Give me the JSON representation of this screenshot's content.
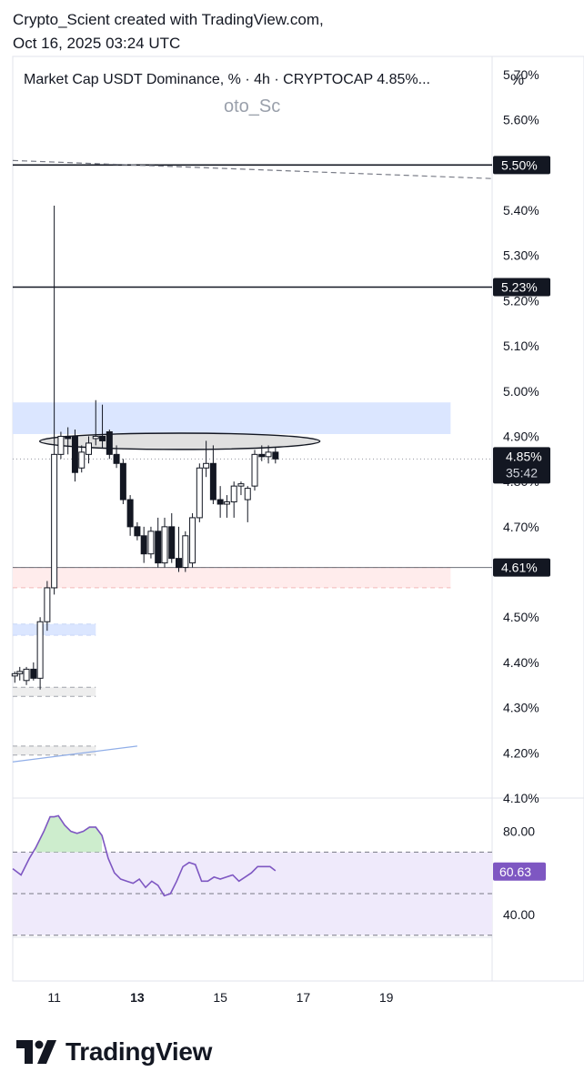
{
  "header": {
    "credit_line1": "Crypto_Scient created with TradingView.com,",
    "credit_line2": "Oct 16, 2025 03:24 UTC",
    "title": "Market Cap USDT Dominance, % · 4h · CRYPTOCAP  4.85%...",
    "watermark": "oto_Sc",
    "unit": "%"
  },
  "footer": {
    "brand": "TradingView",
    "logo_icon": "tradingview-logo-icon"
  },
  "colors": {
    "zone_blue": "#dbe6ff",
    "zone_red": "#ffecec",
    "rsi_band": "#efeafb",
    "rsi_line": "#7e57c2",
    "rsi_overbought_fill": "#c8ebc8",
    "candle_up": "#ffffff",
    "candle_down": "#131722",
    "ellipse_fill": "#d6d6d6"
  },
  "chart_data": [
    {
      "type": "candlestick",
      "title": "Market Cap USDT Dominance, % · 4h · CRYPTOCAP",
      "unit": "%",
      "ylim": [
        4.1,
        5.72
      ],
      "y_ticks": [
        "5.70%",
        "5.60%",
        "5.50%",
        "5.40%",
        "5.30%",
        "5.20%",
        "5.10%",
        "5.00%",
        "4.90%",
        "4.80%",
        "4.70%",
        "4.60%",
        "4.50%",
        "4.40%",
        "4.30%",
        "4.20%",
        "4.10%"
      ],
      "x_ticks": [
        {
          "label": "11",
          "day": 11,
          "bold": false
        },
        {
          "label": "13",
          "day": 13,
          "bold": true
        },
        {
          "label": "15",
          "day": 15,
          "bold": false
        },
        {
          "label": "17",
          "day": 17,
          "bold": false
        },
        {
          "label": "19",
          "day": 19,
          "bold": false
        }
      ],
      "xlim_days": [
        10.0,
        21.55
      ],
      "current": {
        "value": 4.85,
        "label": "4.85%",
        "countdown": "35:42"
      },
      "levels": [
        {
          "value": 5.5,
          "label": "5.50%"
        },
        {
          "value": 5.23,
          "label": "5.23%"
        },
        {
          "value": 4.61,
          "label": "4.61%"
        }
      ],
      "trendline": {
        "from": [
          10.0,
          5.51
        ],
        "to": [
          21.55,
          5.47
        ]
      },
      "zones": [
        {
          "kind": "supply",
          "color": "blue",
          "x_from": 10.0,
          "x_to": 20.55,
          "y_from": 4.905,
          "y_to": 4.975
        },
        {
          "kind": "demand",
          "color": "red",
          "x_from": 10.0,
          "x_to": 20.55,
          "y_from": 4.565,
          "y_to": 4.61
        },
        {
          "kind": "demand",
          "color": "blue",
          "x_from": 10.0,
          "x_to": 12.0,
          "y_from": 4.46,
          "y_to": 4.485
        },
        {
          "kind": "demand",
          "color": "gray",
          "x_from": 10.0,
          "x_to": 12.0,
          "y_from": 4.325,
          "y_to": 4.345
        },
        {
          "kind": "demand",
          "color": "gray",
          "x_from": 10.0,
          "x_to": 12.0,
          "y_from": 4.195,
          "y_to": 4.215
        }
      ],
      "ellipse": {
        "x_from": 10.65,
        "x_to": 17.4,
        "y_center": 4.889,
        "y_half_height": 0.018
      },
      "channel_line": {
        "from": [
          10.0,
          4.18
        ],
        "to": [
          13.0,
          4.215
        ]
      },
      "candles": [
        {
          "x": 10.05,
          "o": 4.37,
          "h": 4.38,
          "l": 4.355,
          "c": 4.375
        },
        {
          "x": 10.17,
          "o": 4.375,
          "h": 4.39,
          "l": 4.36,
          "c": 4.38
        },
        {
          "x": 10.33,
          "o": 4.36,
          "h": 4.39,
          "l": 4.35,
          "c": 4.385
        },
        {
          "x": 10.5,
          "o": 4.385,
          "h": 4.4,
          "l": 4.36,
          "c": 4.365
        },
        {
          "x": 10.66,
          "o": 4.365,
          "h": 4.5,
          "l": 4.34,
          "c": 4.49
        },
        {
          "x": 10.83,
          "o": 4.49,
          "h": 4.58,
          "l": 4.47,
          "c": 4.565
        },
        {
          "x": 11.0,
          "o": 4.565,
          "h": 5.41,
          "l": 4.55,
          "c": 4.86
        },
        {
          "x": 11.16,
          "o": 4.86,
          "h": 4.91,
          "l": 4.85,
          "c": 4.9
        },
        {
          "x": 11.33,
          "o": 4.9,
          "h": 4.92,
          "l": 4.86,
          "c": 4.895
        },
        {
          "x": 11.5,
          "o": 4.9,
          "h": 4.915,
          "l": 4.8,
          "c": 4.82
        },
        {
          "x": 11.66,
          "o": 4.83,
          "h": 4.88,
          "l": 4.82,
          "c": 4.865
        },
        {
          "x": 11.83,
          "o": 4.86,
          "h": 4.9,
          "l": 4.84,
          "c": 4.885
        },
        {
          "x": 12.0,
          "o": 4.895,
          "h": 4.98,
          "l": 4.88,
          "c": 4.9
        },
        {
          "x": 12.16,
          "o": 4.9,
          "h": 4.97,
          "l": 4.875,
          "c": 4.89
        },
        {
          "x": 12.33,
          "o": 4.91,
          "h": 4.915,
          "l": 4.85,
          "c": 4.86
        },
        {
          "x": 12.5,
          "o": 4.86,
          "h": 4.88,
          "l": 4.83,
          "c": 4.84
        },
        {
          "x": 12.66,
          "o": 4.84,
          "h": 4.85,
          "l": 4.75,
          "c": 4.76
        },
        {
          "x": 12.83,
          "o": 4.76,
          "h": 4.77,
          "l": 4.68,
          "c": 4.7
        },
        {
          "x": 13.0,
          "o": 4.7,
          "h": 4.71,
          "l": 4.67,
          "c": 4.68
        },
        {
          "x": 13.16,
          "o": 4.68,
          "h": 4.7,
          "l": 4.62,
          "c": 4.64
        },
        {
          "x": 13.33,
          "o": 4.64,
          "h": 4.7,
          "l": 4.63,
          "c": 4.69
        },
        {
          "x": 13.5,
          "o": 4.69,
          "h": 4.72,
          "l": 4.61,
          "c": 4.62
        },
        {
          "x": 13.66,
          "o": 4.62,
          "h": 4.72,
          "l": 4.61,
          "c": 4.7
        },
        {
          "x": 13.83,
          "o": 4.7,
          "h": 4.73,
          "l": 4.62,
          "c": 4.63
        },
        {
          "x": 14.0,
          "o": 4.63,
          "h": 4.7,
          "l": 4.6,
          "c": 4.61
        },
        {
          "x": 14.16,
          "o": 4.61,
          "h": 4.69,
          "l": 4.6,
          "c": 4.68
        },
        {
          "x": 14.33,
          "o": 4.62,
          "h": 4.73,
          "l": 4.61,
          "c": 4.72
        },
        {
          "x": 14.5,
          "o": 4.72,
          "h": 4.84,
          "l": 4.71,
          "c": 4.83
        },
        {
          "x": 14.66,
          "o": 4.83,
          "h": 4.89,
          "l": 4.81,
          "c": 4.84
        },
        {
          "x": 14.83,
          "o": 4.84,
          "h": 4.88,
          "l": 4.75,
          "c": 4.76
        },
        {
          "x": 15.0,
          "o": 4.76,
          "h": 4.79,
          "l": 4.72,
          "c": 4.75
        },
        {
          "x": 15.16,
          "o": 4.75,
          "h": 4.77,
          "l": 4.72,
          "c": 4.755
        },
        {
          "x": 15.33,
          "o": 4.755,
          "h": 4.8,
          "l": 4.72,
          "c": 4.79
        },
        {
          "x": 15.5,
          "o": 4.79,
          "h": 4.8,
          "l": 4.77,
          "c": 4.795
        },
        {
          "x": 15.66,
          "o": 4.76,
          "h": 4.79,
          "l": 4.71,
          "c": 4.785
        },
        {
          "x": 15.83,
          "o": 4.79,
          "h": 4.87,
          "l": 4.78,
          "c": 4.86
        },
        {
          "x": 16.0,
          "o": 4.86,
          "h": 4.88,
          "l": 4.845,
          "c": 4.855
        },
        {
          "x": 16.16,
          "o": 4.855,
          "h": 4.88,
          "l": 4.84,
          "c": 4.865
        },
        {
          "x": 16.33,
          "o": 4.865,
          "h": 4.875,
          "l": 4.84,
          "c": 4.85
        }
      ]
    },
    {
      "type": "line",
      "title": "",
      "ylim": [
        29,
        96
      ],
      "y_ticks": [
        "80.00",
        "40.00"
      ],
      "bands": {
        "upper": 70,
        "middle": 50,
        "lower": 30
      },
      "current": {
        "value": 60.63,
        "label": "60.63"
      },
      "x": [
        10.0,
        10.2,
        10.4,
        10.55,
        10.75,
        10.9,
        11.0,
        11.1,
        11.25,
        11.4,
        11.55,
        11.7,
        11.85,
        12.0,
        12.15,
        12.3,
        12.45,
        12.6,
        12.75,
        12.9,
        13.05,
        13.2,
        13.35,
        13.5,
        13.65,
        13.8,
        13.95,
        14.1,
        14.25,
        14.4,
        14.55,
        14.7,
        14.85,
        15.0,
        15.15,
        15.3,
        15.45,
        15.6,
        15.75,
        15.9,
        16.05,
        16.2,
        16.33
      ],
      "y": [
        62,
        59,
        67,
        72,
        80,
        87,
        87,
        87.5,
        83,
        80,
        79,
        80,
        82,
        82,
        78,
        67,
        60,
        57,
        56,
        55,
        57,
        53,
        56,
        54,
        49,
        50,
        56,
        63,
        65,
        64,
        56,
        56,
        58,
        57,
        58,
        59,
        56,
        58,
        60,
        63,
        63,
        63,
        61
      ]
    }
  ]
}
